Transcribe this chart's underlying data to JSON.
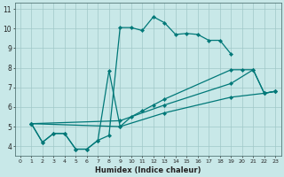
{
  "xlabel": "Humidex (Indice chaleur)",
  "xlim": [
    -0.5,
    23.5
  ],
  "ylim": [
    3.5,
    11.3
  ],
  "xticks": [
    0,
    1,
    2,
    3,
    4,
    5,
    6,
    7,
    8,
    9,
    10,
    11,
    12,
    13,
    14,
    15,
    16,
    17,
    18,
    19,
    20,
    21,
    22,
    23
  ],
  "yticks": [
    4,
    5,
    6,
    7,
    8,
    9,
    10,
    11
  ],
  "background_color": "#c8e8e8",
  "grid_color": "#a0c8c8",
  "line_color": "#007878",
  "line1_x": [
    1,
    2,
    3,
    4,
    5,
    6,
    7,
    8,
    9,
    10,
    11,
    12,
    13,
    14,
    15,
    16,
    17,
    18,
    19,
    20,
    21,
    22,
    23
  ],
  "line1_y": [
    5.15,
    4.2,
    4.65,
    4.65,
    3.85,
    3.85,
    4.3,
    4.55,
    10.05,
    10.05,
    9.9,
    10.6,
    10.3,
    9.7,
    9.75,
    9.7,
    9.4,
    9.4,
    8.7,
    null,
    null,
    null,
    null
  ],
  "line2_x": [
    1,
    2,
    3,
    4,
    5,
    6,
    7,
    8,
    9,
    10,
    11,
    12,
    13,
    19,
    20,
    21,
    22,
    23
  ],
  "line2_y": [
    5.15,
    4.2,
    4.65,
    4.65,
    3.85,
    3.85,
    4.3,
    7.85,
    5.0,
    5.5,
    5.8,
    6.1,
    6.4,
    7.9,
    7.9,
    7.9,
    6.7,
    6.8
  ],
  "line3_x": [
    1,
    9,
    13,
    19,
    21,
    22,
    23
  ],
  "line3_y": [
    5.15,
    5.3,
    6.1,
    7.2,
    7.9,
    6.7,
    6.8
  ],
  "line4_x": [
    1,
    9,
    13,
    19,
    22,
    23
  ],
  "line4_y": [
    5.15,
    5.0,
    5.7,
    6.5,
    6.7,
    6.8
  ]
}
